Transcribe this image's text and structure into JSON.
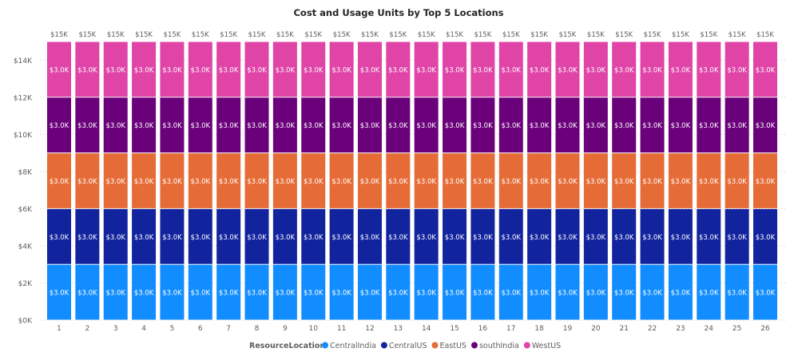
{
  "chart_data": {
    "type": "bar",
    "stacked": true,
    "title": "Cost and Usage Units by Top 5 Locations",
    "xlabel": "",
    "ylabel": "",
    "ylim": [
      0,
      15000
    ],
    "yticks": [
      0,
      2000,
      4000,
      6000,
      8000,
      10000,
      12000,
      14000
    ],
    "ytick_labels": [
      "$0K",
      "$2K",
      "$4K",
      "$6K",
      "$8K",
      "$10K",
      "$12K",
      "$14K"
    ],
    "grid": true,
    "categories": [
      "1",
      "2",
      "3",
      "4",
      "5",
      "6",
      "7",
      "8",
      "9",
      "10",
      "11",
      "12",
      "13",
      "14",
      "15",
      "16",
      "17",
      "18",
      "19",
      "20",
      "21",
      "22",
      "23",
      "24",
      "25",
      "26"
    ],
    "legend_title": "ResourceLocation",
    "legend_position": "bottom-center",
    "series": [
      {
        "name": "CentralIndia",
        "color": "#118DFF",
        "values": [
          3000,
          3000,
          3000,
          3000,
          3000,
          3000,
          3000,
          3000,
          3000,
          3000,
          3000,
          3000,
          3000,
          3000,
          3000,
          3000,
          3000,
          3000,
          3000,
          3000,
          3000,
          3000,
          3000,
          3000,
          3000,
          3000
        ],
        "label": "$3.0K"
      },
      {
        "name": "CentralUS",
        "color": "#12239E",
        "values": [
          3000,
          3000,
          3000,
          3000,
          3000,
          3000,
          3000,
          3000,
          3000,
          3000,
          3000,
          3000,
          3000,
          3000,
          3000,
          3000,
          3000,
          3000,
          3000,
          3000,
          3000,
          3000,
          3000,
          3000,
          3000,
          3000
        ],
        "label": "$3.0K"
      },
      {
        "name": "EastUS",
        "color": "#E66C37",
        "values": [
          3000,
          3000,
          3000,
          3000,
          3000,
          3000,
          3000,
          3000,
          3000,
          3000,
          3000,
          3000,
          3000,
          3000,
          3000,
          3000,
          3000,
          3000,
          3000,
          3000,
          3000,
          3000,
          3000,
          3000,
          3000,
          3000
        ],
        "label": "$3.0K"
      },
      {
        "name": "southIndia",
        "color": "#6B007B",
        "values": [
          3000,
          3000,
          3000,
          3000,
          3000,
          3000,
          3000,
          3000,
          3000,
          3000,
          3000,
          3000,
          3000,
          3000,
          3000,
          3000,
          3000,
          3000,
          3000,
          3000,
          3000,
          3000,
          3000,
          3000,
          3000,
          3000
        ],
        "label": "$3.0K"
      },
      {
        "name": "WestUS",
        "color": "#E044A7",
        "values": [
          3000,
          3000,
          3000,
          3000,
          3000,
          3000,
          3000,
          3000,
          3000,
          3000,
          3000,
          3000,
          3000,
          3000,
          3000,
          3000,
          3000,
          3000,
          3000,
          3000,
          3000,
          3000,
          3000,
          3000,
          3000,
          3000
        ],
        "label": "$3.0K"
      }
    ],
    "total_label": "$15K"
  }
}
